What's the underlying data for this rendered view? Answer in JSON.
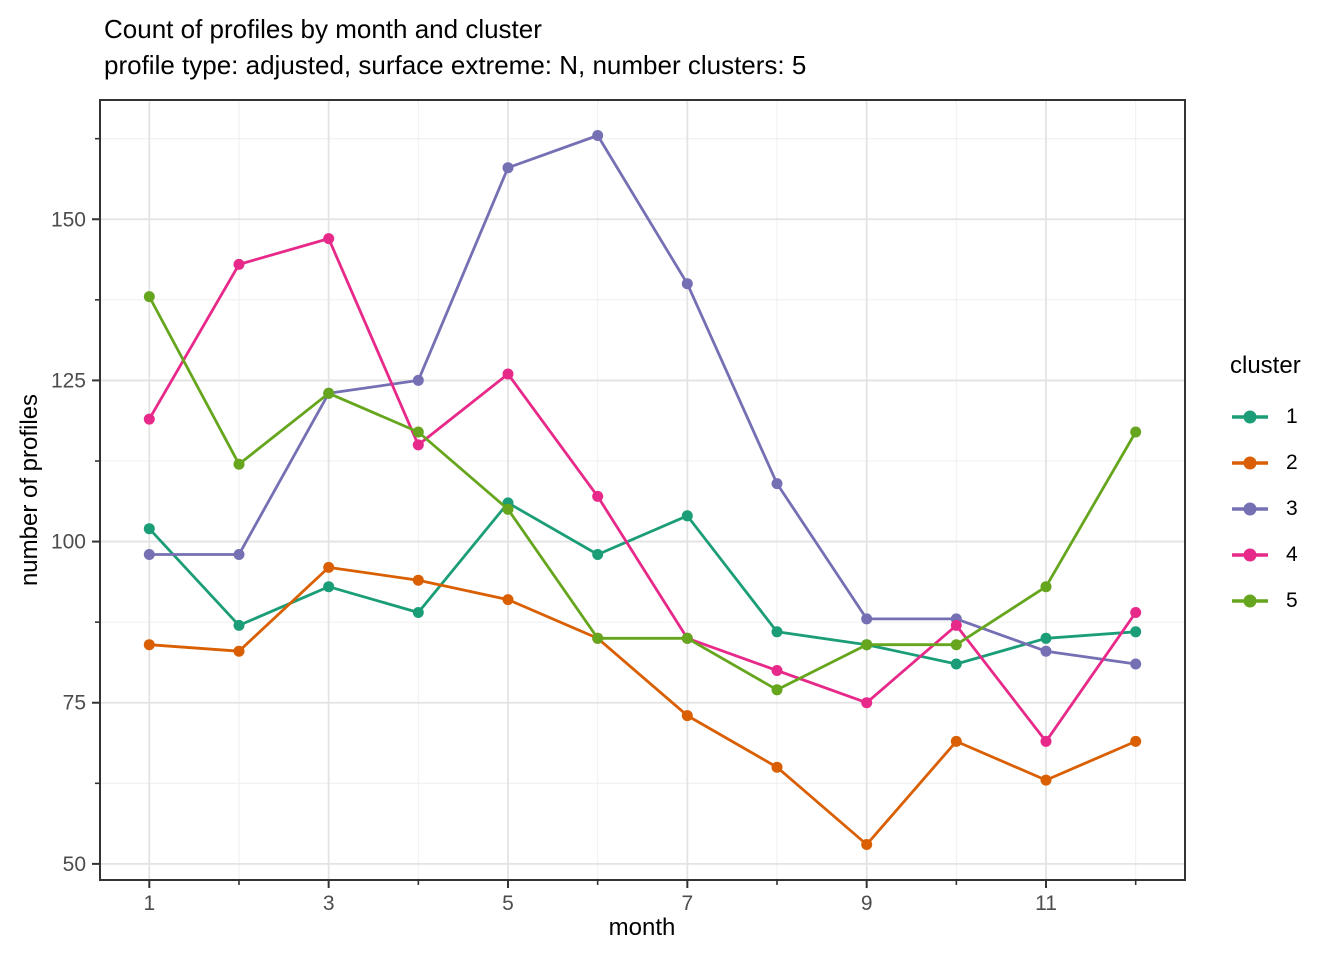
{
  "chart_data": {
    "type": "line",
    "title": "Count of profiles by month and cluster",
    "subtitle": "profile type: adjusted, surface extreme: N, number clusters: 5",
    "xlabel": "month",
    "ylabel": "number of profiles",
    "x": [
      1,
      2,
      3,
      4,
      5,
      6,
      7,
      8,
      9,
      10,
      11,
      12
    ],
    "series": [
      {
        "name": "1",
        "color": "#1B9E77",
        "values": [
          102,
          87,
          93,
          89,
          106,
          98,
          104,
          86,
          84,
          81,
          85,
          86
        ]
      },
      {
        "name": "2",
        "color": "#D95F02",
        "values": [
          84,
          83,
          96,
          94,
          91,
          85,
          73,
          65,
          53,
          69,
          63,
          69
        ]
      },
      {
        "name": "3",
        "color": "#7570B3",
        "values": [
          98,
          98,
          123,
          125,
          158,
          163,
          140,
          109,
          88,
          88,
          83,
          81
        ]
      },
      {
        "name": "4",
        "color": "#E7298A",
        "values": [
          119,
          143,
          147,
          115,
          126,
          107,
          85,
          80,
          75,
          87,
          69,
          89
        ]
      },
      {
        "name": "5",
        "color": "#66A61E",
        "values": [
          138,
          112,
          123,
          117,
          105,
          85,
          85,
          77,
          84,
          84,
          93,
          117
        ]
      }
    ],
    "legend": {
      "title": "cluster",
      "position": "right",
      "entries": [
        "1",
        "2",
        "3",
        "4",
        "5"
      ]
    },
    "x_ticks": [
      1,
      3,
      5,
      7,
      9,
      11
    ],
    "x_minor_ticks": [
      2,
      4,
      6,
      8,
      10,
      12
    ],
    "y_ticks": [
      150,
      125,
      100,
      75,
      50
    ],
    "y_minor_ticks": [
      162.5,
      137.5,
      112.5,
      87.5,
      62.5
    ],
    "xlim": [
      0.45,
      12.55
    ],
    "ylim": [
      47.5,
      168.5
    ],
    "grid": true
  },
  "style": {
    "background": "#FFFFFF",
    "panel_background": "#FFFFFF",
    "panel_border": "#333333",
    "grid_major": "#E3E3E3",
    "grid_minor": "#F0F0F0",
    "tick_color": "#333333",
    "tick_label_color": "#4D4D4D",
    "text_color": "#000000"
  }
}
